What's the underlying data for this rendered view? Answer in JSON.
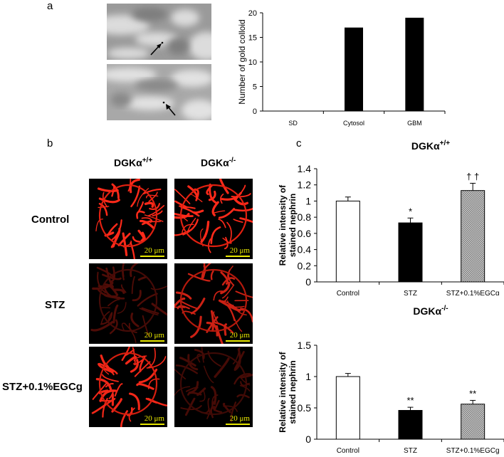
{
  "panels": {
    "a": {
      "letter": "a"
    },
    "b": {
      "letter": "b",
      "columns": [
        "DGKα+/+",
        "DGKα-/-"
      ],
      "rows": [
        "Control",
        "STZ",
        "STZ+0.1%EGCg"
      ],
      "scale_label": "20 μm"
    },
    "c": {
      "letter": "c"
    }
  },
  "chart_data": [
    {
      "type": "bar",
      "categories": [
        "SD",
        "Cytosol",
        "GBM"
      ],
      "values": [
        0,
        17,
        19
      ],
      "ylabel": "Number of gold colloid",
      "ylim": [
        0,
        20
      ],
      "yticks": [
        0,
        5,
        10,
        15,
        20
      ],
      "bar_color": "#000000",
      "grid": false
    },
    {
      "type": "bar",
      "title": "DGKα+/+",
      "categories": [
        "Control",
        "STZ",
        "STZ+0.1%EGCg"
      ],
      "values": [
        1.0,
        0.73,
        1.13
      ],
      "errors": [
        0.05,
        0.06,
        0.09
      ],
      "annotations": [
        "",
        "*",
        "† †"
      ],
      "ylabel": "Relative intensity of stained nephrin",
      "ylim": [
        0,
        1.4
      ],
      "yticks": [
        0,
        0.2,
        0.4,
        0.6,
        0.8,
        1,
        1.2,
        1.4
      ],
      "bar_styles": [
        "white",
        "black",
        "pattern"
      ],
      "grid": false
    },
    {
      "type": "bar",
      "title": "DGKα-/-",
      "categories": [
        "Control",
        "STZ",
        "STZ+0.1%EGCg"
      ],
      "values": [
        1.0,
        0.46,
        0.56
      ],
      "errors": [
        0.05,
        0.05,
        0.06
      ],
      "annotations": [
        "",
        "**",
        "**"
      ],
      "ylabel": "Relative intensity of stained nephrin",
      "ylim": [
        0,
        1.5
      ],
      "yticks": [
        0,
        0.5,
        1,
        1.5
      ],
      "bar_styles": [
        "white",
        "black",
        "pattern"
      ],
      "grid": false
    }
  ]
}
